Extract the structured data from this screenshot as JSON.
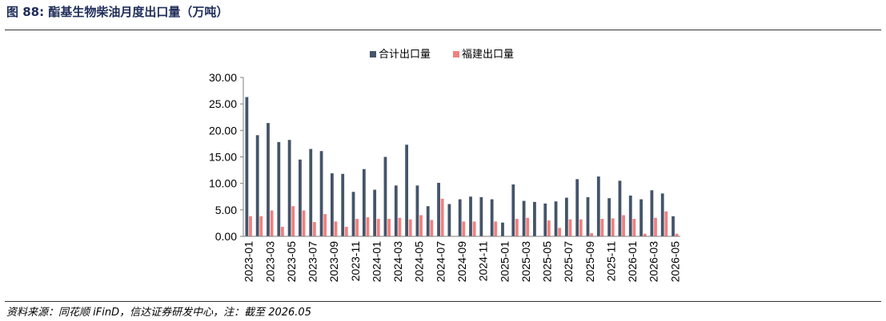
{
  "figure": {
    "label": "图 88:",
    "title": "酯基生物柴油月度出口量（万吨）",
    "source": "资料来源：同花顺 iFinD，信达证券研发中心，注：截至 2026.05"
  },
  "colors": {
    "total": "#44546a",
    "fujian": "#f08080"
  },
  "chart_data": {
    "type": "bar",
    "title": "",
    "xlabel": "",
    "ylabel": "",
    "ylim": [
      0,
      30
    ],
    "yticks": [
      "0.00",
      "5.00",
      "10.00",
      "15.00",
      "20.00",
      "25.00",
      "30.00"
    ],
    "legend_position": "top",
    "grid": false,
    "categories": [
      "2023-01",
      "2023-02",
      "2023-03",
      "2023-04",
      "2023-05",
      "2023-06",
      "2023-07",
      "2023-08",
      "2023-09",
      "2023-10",
      "2023-11",
      "2023-12",
      "2024-01",
      "2024-02",
      "2024-03",
      "2024-04",
      "2024-05",
      "2024-06",
      "2024-07",
      "2024-08",
      "2024-09",
      "2024-10",
      "2024-11",
      "2024-12",
      "2025-01",
      "2025-02",
      "2025-03",
      "2025-04",
      "2025-05",
      "2025-06",
      "2025-07",
      "2025-08",
      "2025-09",
      "2025-10",
      "2025-11",
      "2025-12",
      "2026-01",
      "2026-02",
      "2026-03",
      "2026-04",
      "2026-05"
    ],
    "xtick_labels": [
      "2023-01",
      "2023-03",
      "2023-05",
      "2023-07",
      "2023-09",
      "2023-11",
      "2024-01",
      "2024-03",
      "2024-05",
      "2024-07",
      "2024-09",
      "2024-11",
      "2025-01",
      "2025-03",
      "2025-05",
      "2025-07",
      "2025-09",
      "2025-11",
      "2026-01",
      "2026-03",
      "2026-05"
    ],
    "series": [
      {
        "name": "合计出口量",
        "values": [
          26.3,
          19.1,
          21.4,
          17.8,
          18.2,
          14.5,
          16.5,
          16.1,
          11.9,
          11.8,
          8.4,
          12.7,
          8.8,
          15.0,
          9.6,
          17.3,
          9.6,
          5.7,
          10.1,
          6.1,
          7.0,
          7.5,
          7.4,
          7.0,
          2.6,
          9.8,
          6.7,
          6.5,
          6.2,
          6.6,
          7.3,
          10.8,
          7.4,
          11.3,
          7.2,
          10.5,
          7.7,
          7.0,
          8.7,
          8.1,
          3.8
        ]
      },
      {
        "name": "福建出口量",
        "values": [
          3.8,
          3.8,
          4.9,
          1.8,
          5.7,
          4.9,
          2.7,
          4.2,
          2.8,
          1.8,
          3.3,
          3.6,
          3.3,
          3.3,
          3.5,
          3.2,
          4.0,
          3.1,
          7.1,
          0.0,
          2.8,
          2.8,
          0.0,
          2.8,
          0.0,
          3.3,
          3.5,
          0.0,
          3.0,
          1.6,
          3.2,
          3.2,
          0.6,
          3.3,
          3.4,
          4.0,
          3.3,
          0.5,
          3.5,
          4.7,
          0.5
        ]
      }
    ]
  }
}
